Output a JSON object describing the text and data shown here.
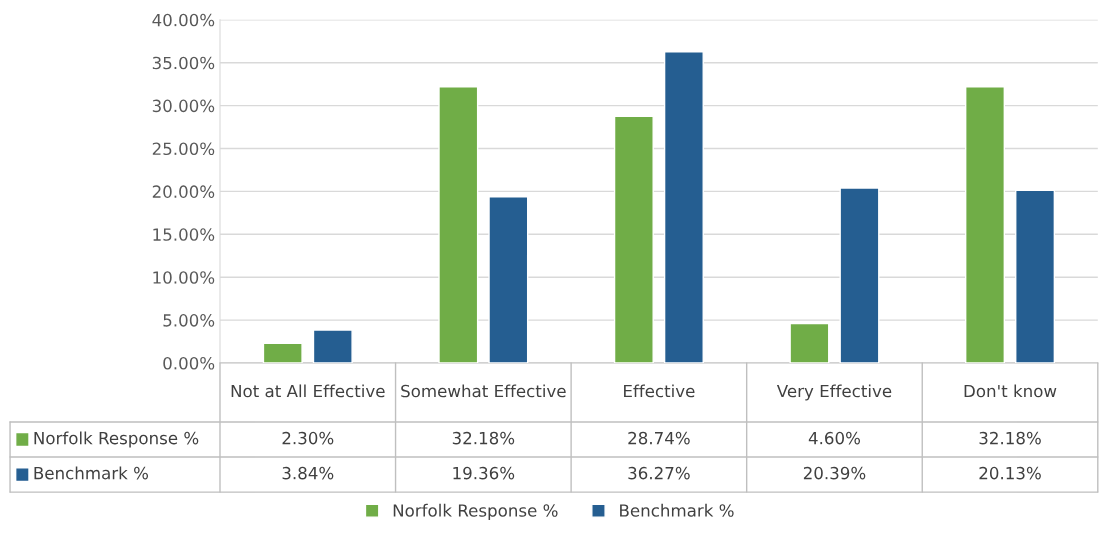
{
  "chart_data": {
    "type": "bar",
    "categories": [
      "Not at All Effective",
      "Somewhat Effective",
      "Effective",
      "Very Effective",
      "Don't know"
    ],
    "series": [
      {
        "name": "Norfolk Response %",
        "color": "#70ad47",
        "values": [
          2.3,
          32.18,
          28.74,
          4.6,
          32.18
        ],
        "value_labels": [
          "2.30%",
          "32.18%",
          "28.74%",
          "4.60%",
          "32.18%"
        ]
      },
      {
        "name": "Benchmark %",
        "color": "#255e91",
        "values": [
          3.84,
          19.36,
          36.27,
          20.39,
          20.13
        ],
        "value_labels": [
          "3.84%",
          "19.36%",
          "36.27%",
          "20.39%",
          "20.13%"
        ]
      }
    ],
    "ylim": [
      0,
      40
    ],
    "yticks": [
      {
        "value": 0,
        "label": "0.00%"
      },
      {
        "value": 5,
        "label": "5.00%"
      },
      {
        "value": 10,
        "label": "10.00%"
      },
      {
        "value": 15,
        "label": "15.00%"
      },
      {
        "value": 20,
        "label": "20.00%"
      },
      {
        "value": 25,
        "label": "25.00%"
      },
      {
        "value": 30,
        "label": "30.00%"
      },
      {
        "value": 35,
        "label": "35.00%"
      },
      {
        "value": 40,
        "label": "40.00%"
      }
    ],
    "grid": "y",
    "legend": "bottom"
  }
}
